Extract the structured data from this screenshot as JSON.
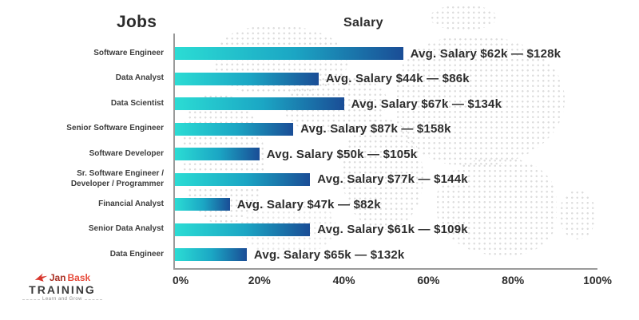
{
  "titles": {
    "jobs": "Jobs",
    "salary": "Salary"
  },
  "chart_data": {
    "type": "bar",
    "orientation": "horizontal",
    "column_headers": {
      "left": "Jobs",
      "right": "Salary"
    },
    "x_ticks": [
      "0%",
      "20%",
      "40%",
      "60%",
      "80%",
      "100%"
    ],
    "xlim": [
      0,
      100
    ],
    "grid": false,
    "bar_gradient": [
      "#2BDCD4",
      "#1A4D96"
    ],
    "rows": [
      {
        "label": "Software Engineer",
        "length_pct": 54,
        "annotation": "Avg. Salary $62k — $128k",
        "avg_salary_range_k": [
          62,
          128
        ]
      },
      {
        "label": "Data Analyst",
        "length_pct": 34,
        "annotation": "Avg. Salary $44k — $86k",
        "avg_salary_range_k": [
          44,
          86
        ]
      },
      {
        "label": "Data Scientist",
        "length_pct": 40,
        "annotation": "Avg. Salary $67k — $134k",
        "avg_salary_range_k": [
          67,
          134
        ]
      },
      {
        "label": "Senior Software Engineer",
        "length_pct": 28,
        "annotation": "Avg. Salary $87k — $158k",
        "avg_salary_range_k": [
          87,
          158
        ]
      },
      {
        "label": "Software Developer",
        "length_pct": 20,
        "annotation": "Avg. Salary $50k — $105k",
        "avg_salary_range_k": [
          50,
          105
        ]
      },
      {
        "label": "Sr. Software Engineer /\nDeveloper / Programmer",
        "length_pct": 32,
        "annotation": "Avg. Salary $77k — $144k",
        "avg_salary_range_k": [
          77,
          144
        ]
      },
      {
        "label": "Financial Analyst",
        "length_pct": 13,
        "annotation": "Avg. Salary $47k — $82k",
        "avg_salary_range_k": [
          47,
          82
        ]
      },
      {
        "label": "Senior Data Analyst",
        "length_pct": 32,
        "annotation": "Avg. Salary $61k — $109k",
        "avg_salary_range_k": [
          61,
          109
        ]
      },
      {
        "label": "Data Engineer",
        "length_pct": 17,
        "annotation": "Avg. Salary $65k — $132k",
        "avg_salary_range_k": [
          65,
          132
        ]
      }
    ]
  },
  "logo": {
    "brand_part1": "Jan",
    "brand_part2": "Bask",
    "line2": "TRAINING",
    "tagline": "Learn and Grow"
  }
}
